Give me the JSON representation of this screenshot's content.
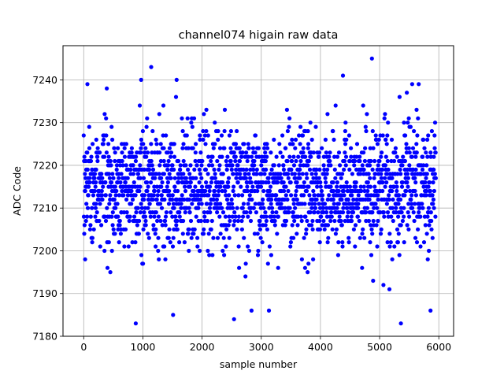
{
  "chart_data": {
    "type": "scatter",
    "title": "channel074 higain raw data",
    "xlabel": "sample number",
    "ylabel": "ADC Code",
    "xlim": [
      -350,
      6250
    ],
    "ylim": [
      7180,
      7248
    ],
    "xticks": [
      0,
      1000,
      2000,
      3000,
      4000,
      5000,
      6000
    ],
    "yticks": [
      7180,
      7190,
      7200,
      7210,
      7220,
      7230,
      7240
    ],
    "grid": true,
    "marker_color": "#0000ff",
    "n_samples": 5950,
    "value_range": [
      7183,
      7245
    ],
    "typical_band": [
      7200,
      7230
    ],
    "center": 7215,
    "outliers": [
      {
        "x": 880,
        "y": 7183
      },
      {
        "x": 2540,
        "y": 7184
      },
      {
        "x": 5360,
        "y": 7183
      },
      {
        "x": 1510,
        "y": 7185
      },
      {
        "x": 3130,
        "y": 7186
      },
      {
        "x": 5860,
        "y": 7186
      },
      {
        "x": 1140,
        "y": 7243
      },
      {
        "x": 4870,
        "y": 7245
      },
      {
        "x": 970,
        "y": 7240
      },
      {
        "x": 1570,
        "y": 7240
      },
      {
        "x": 4380,
        "y": 7241
      },
      {
        "x": 5660,
        "y": 7239
      },
      {
        "x": 5550,
        "y": 7239
      }
    ]
  }
}
